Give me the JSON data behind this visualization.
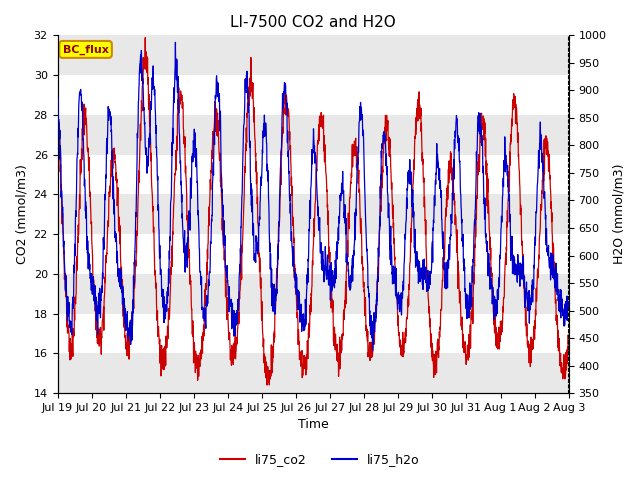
{
  "title": "LI-7500 CO2 and H2O",
  "xlabel": "Time",
  "ylabel_left": "CO2 (mmol/m3)",
  "ylabel_right": "H2O (mmol/m3)",
  "ylim_left": [
    14,
    32
  ],
  "ylim_right": [
    350,
    1000
  ],
  "yticks_left": [
    14,
    16,
    18,
    20,
    22,
    24,
    26,
    28,
    30,
    32
  ],
  "yticks_right": [
    350,
    400,
    450,
    500,
    550,
    600,
    650,
    700,
    750,
    800,
    850,
    900,
    950,
    1000
  ],
  "color_co2": "#cc0000",
  "color_h2o": "#0000cc",
  "legend_labels": [
    "li75_co2",
    "li75_h2o"
  ],
  "annotation_text": "BC_flux",
  "annotation_bg": "#ffff00",
  "annotation_border": "#cc8800",
  "bg_band_light": "#e8e8e8",
  "bg_band_white": "#ffffff",
  "x_tick_labels": [
    "Jul 19",
    "Jul 20",
    "Jul 21",
    "Jul 22",
    "Jul 23",
    "Jul 24",
    "Jul 25",
    "Jul 26",
    "Jul 27",
    "Jul 28",
    "Jul 29",
    "Jul 30",
    "Jul 31",
    "Aug 1",
    "Aug 2",
    "Aug 3"
  ],
  "title_fontsize": 11,
  "axis_fontsize": 9,
  "tick_fontsize": 8,
  "linewidth": 0.9
}
